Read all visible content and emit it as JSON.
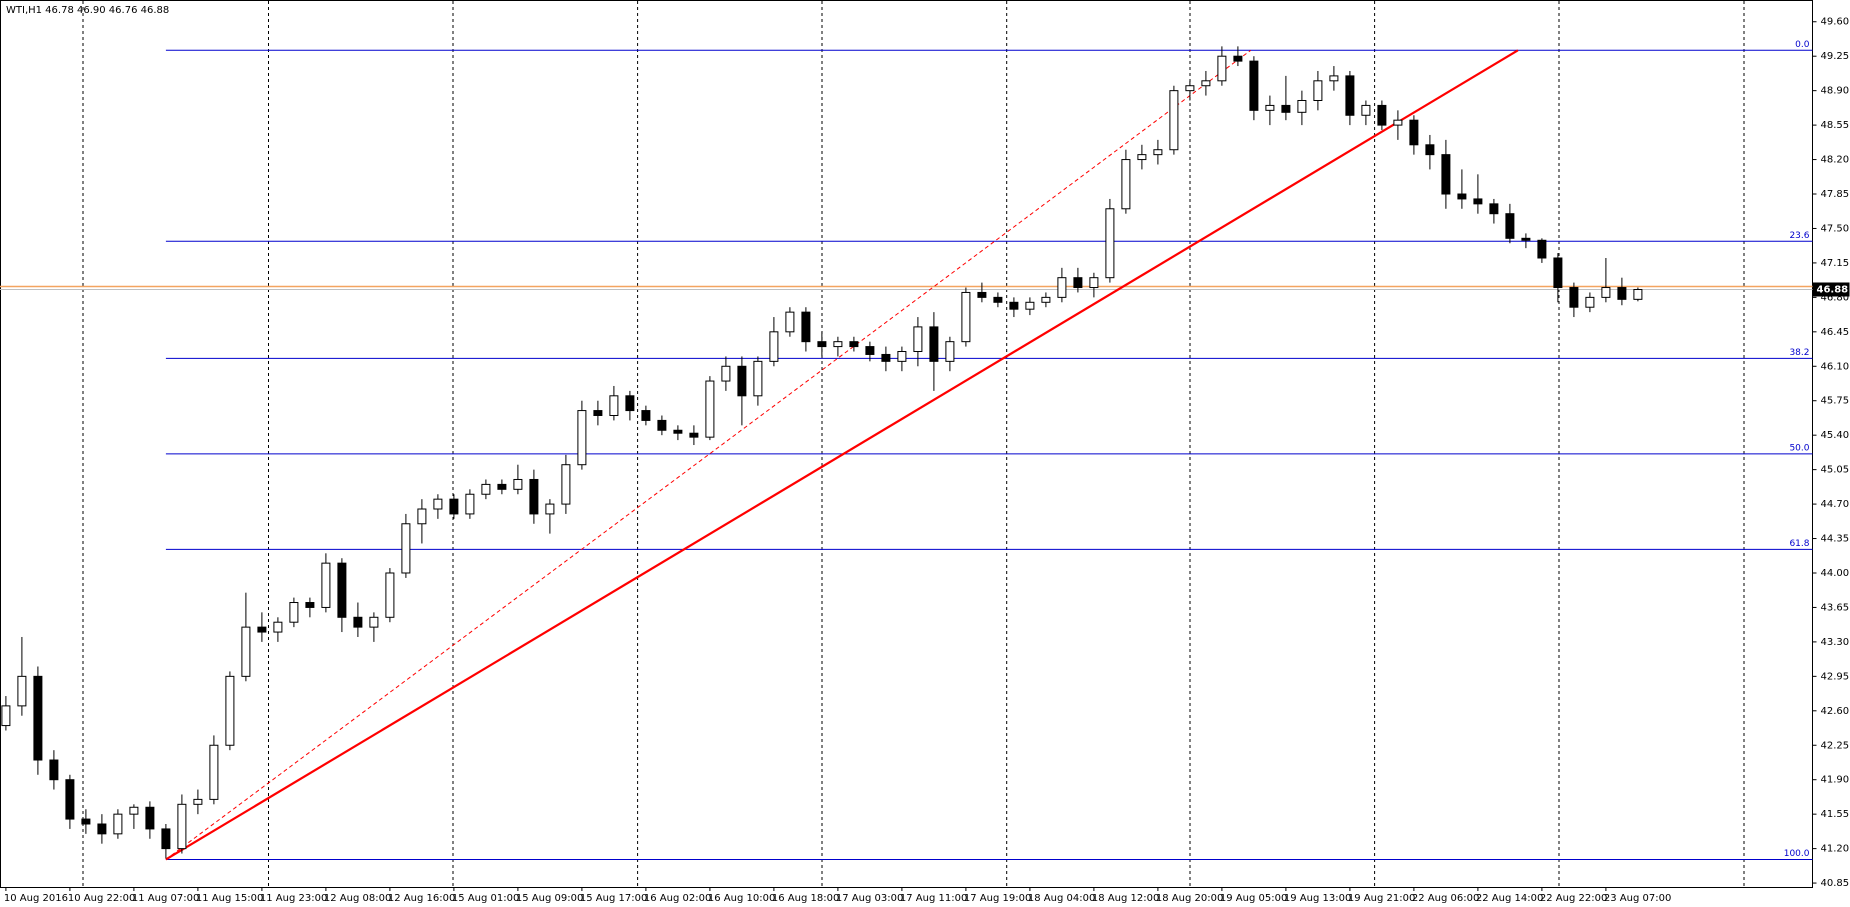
{
  "chart_data": {
    "type": "candlestick",
    "title": "WTI,H1  46.78 46.90 46.76 46.88",
    "ylim": [
      40.81,
      49.76
    ],
    "yticks": [
      40.85,
      {
        "value": 41.2,
        "label": "41.20"
      },
      41.55,
      {
        "value": 41.9,
        "label": "41.90"
      },
      42.25,
      {
        "value": 42.6,
        "label": "42.60"
      },
      42.95,
      {
        "value": 43.3,
        "label": "43.30"
      },
      43.65,
      {
        "value": 44,
        "label": "44.00"
      },
      44.35,
      {
        "value": 44.7,
        "label": "44.70"
      },
      45.05,
      {
        "value": 45.4,
        "label": "45.40"
      },
      45.75,
      {
        "value": 46.1,
        "label": "46.10"
      },
      46.45,
      {
        "value": 46.8,
        "label": "46.80"
      },
      47.15,
      {
        "value": 47.5,
        "label": "47.50"
      },
      47.85,
      {
        "value": 48.2,
        "label": "48.20"
      },
      48.55,
      {
        "value": 48.9,
        "label": "48.90"
      },
      49.25,
      {
        "value": 49.6,
        "label": "49.60"
      }
    ],
    "categories": [
      "10 Aug 2016",
      null,
      null,
      null,
      "10 Aug 22:00",
      null,
      null,
      null,
      "11 Aug 07:00",
      null,
      null,
      null,
      "11 Aug 15:00",
      null,
      null,
      null,
      "11 Aug 23:00",
      null,
      null,
      null,
      "12 Aug 08:00",
      null,
      null,
      null,
      "12 Aug 16:00",
      null,
      null,
      null,
      "15 Aug 01:00",
      null,
      null,
      null,
      "15 Aug 09:00",
      null,
      null,
      null,
      "15 Aug 17:00",
      null,
      null,
      null,
      "16 Aug 02:00",
      null,
      null,
      null,
      "16 Aug 10:00",
      null,
      null,
      null,
      "16 Aug 18:00",
      null,
      null,
      null,
      "17 Aug 03:00",
      null,
      null,
      null,
      "17 Aug 11:00",
      null,
      null,
      null,
      "17 Aug 19:00",
      null,
      null,
      null,
      "18 Aug 04:00",
      null,
      null,
      null,
      "18 Aug 12:00",
      null,
      null,
      null,
      "18 Aug 20:00",
      null,
      null,
      null,
      "19 Aug 05:00",
      null,
      null,
      null,
      "19 Aug 13:00",
      null,
      null,
      null,
      "19 Aug 21:00",
      null,
      null,
      null,
      "22 Aug 06:00",
      null,
      null,
      null,
      "22 Aug 14:00",
      null,
      null,
      null,
      "22 Aug 22:00",
      null,
      null,
      null,
      "23 Aug 07:00",
      null,
      null
    ],
    "ohlc": [
      [
        42.45,
        42.75,
        42.4,
        42.65
      ],
      [
        42.65,
        43.35,
        42.55,
        42.95
      ],
      [
        42.95,
        43.05,
        41.95,
        42.1
      ],
      [
        42.1,
        42.2,
        41.8,
        41.9
      ],
      [
        41.9,
        41.95,
        41.4,
        41.5
      ],
      [
        41.5,
        41.6,
        41.35,
        41.45
      ],
      [
        41.45,
        41.55,
        41.25,
        41.35
      ],
      [
        41.35,
        41.6,
        41.3,
        41.55
      ],
      [
        41.55,
        41.65,
        41.4,
        41.62
      ],
      [
        41.62,
        41.68,
        41.3,
        41.4
      ],
      [
        41.4,
        41.45,
        41.1,
        41.2
      ],
      [
        41.2,
        41.75,
        41.15,
        41.65
      ],
      [
        41.65,
        41.8,
        41.55,
        41.7
      ],
      [
        41.7,
        42.35,
        41.65,
        42.25
      ],
      [
        42.25,
        43,
        42.2,
        42.95
      ],
      [
        42.95,
        43.8,
        42.9,
        43.45
      ],
      [
        43.45,
        43.6,
        43.3,
        43.4
      ],
      [
        43.4,
        43.55,
        43.3,
        43.5
      ],
      [
        43.5,
        43.75,
        43.45,
        43.7
      ],
      [
        43.7,
        43.75,
        43.55,
        43.65
      ],
      [
        43.65,
        44.2,
        43.6,
        44.1
      ],
      [
        44.1,
        44.15,
        43.4,
        43.55
      ],
      [
        43.55,
        43.7,
        43.35,
        43.45
      ],
      [
        43.45,
        43.6,
        43.3,
        43.55
      ],
      [
        43.55,
        44.05,
        43.5,
        44
      ],
      [
        44,
        44.6,
        43.95,
        44.5
      ],
      [
        44.5,
        44.75,
        44.3,
        44.65
      ],
      [
        44.65,
        44.8,
        44.55,
        44.75
      ],
      [
        44.75,
        44.8,
        44.55,
        44.6
      ],
      [
        44.6,
        44.85,
        44.55,
        44.8
      ],
      [
        44.8,
        44.95,
        44.75,
        44.9
      ],
      [
        44.9,
        44.95,
        44.8,
        44.85
      ],
      [
        44.85,
        45.1,
        44.8,
        44.95
      ],
      [
        44.95,
        45.05,
        44.5,
        44.6
      ],
      [
        44.6,
        44.75,
        44.4,
        44.7
      ],
      [
        44.7,
        45.2,
        44.6,
        45.1
      ],
      [
        45.1,
        45.75,
        45.05,
        45.65
      ],
      [
        45.65,
        45.75,
        45.5,
        45.6
      ],
      [
        45.6,
        45.9,
        45.55,
        45.8
      ],
      [
        45.8,
        45.85,
        45.55,
        45.65
      ],
      [
        45.65,
        45.7,
        45.5,
        45.55
      ],
      [
        45.55,
        45.6,
        45.4,
        45.45
      ],
      [
        45.45,
        45.5,
        45.35,
        45.42
      ],
      [
        45.42,
        45.5,
        45.3,
        45.38
      ],
      [
        45.38,
        46,
        45.35,
        45.95
      ],
      [
        45.95,
        46.2,
        45.85,
        46.1
      ],
      [
        46.1,
        46.2,
        45.5,
        45.8
      ],
      [
        45.8,
        46.2,
        45.7,
        46.15
      ],
      [
        46.15,
        46.6,
        46.1,
        46.45
      ],
      [
        46.45,
        46.7,
        46.4,
        46.65
      ],
      [
        46.65,
        46.7,
        46.25,
        46.35
      ],
      [
        46.35,
        46.45,
        46.2,
        46.3
      ],
      [
        46.3,
        46.4,
        46.2,
        46.35
      ],
      [
        46.35,
        46.4,
        46.25,
        46.3
      ],
      [
        46.3,
        46.35,
        46.15,
        46.22
      ],
      [
        46.22,
        46.3,
        46.05,
        46.15
      ],
      [
        46.15,
        46.3,
        46.05,
        46.25
      ],
      [
        46.25,
        46.6,
        46.1,
        46.5
      ],
      [
        46.5,
        46.65,
        45.85,
        46.15
      ],
      [
        46.15,
        46.4,
        46.05,
        46.35
      ],
      [
        46.35,
        46.9,
        46.3,
        46.85
      ],
      [
        46.85,
        46.95,
        46.75,
        46.8
      ],
      [
        46.8,
        46.85,
        46.7,
        46.75
      ],
      [
        46.75,
        46.8,
        46.6,
        46.68
      ],
      [
        46.68,
        46.8,
        46.62,
        46.75
      ],
      [
        46.75,
        46.85,
        46.7,
        46.8
      ],
      [
        46.8,
        47.1,
        46.75,
        47
      ],
      [
        47,
        47.1,
        46.85,
        46.9
      ],
      [
        46.9,
        47.05,
        46.8,
        47
      ],
      [
        47,
        47.8,
        46.95,
        47.7
      ],
      [
        47.7,
        48.3,
        47.65,
        48.2
      ],
      [
        48.2,
        48.35,
        48.1,
        48.25
      ],
      [
        48.25,
        48.4,
        48.15,
        48.3
      ],
      [
        48.3,
        48.95,
        48.25,
        48.9
      ],
      [
        48.9,
        49,
        48.8,
        48.95
      ],
      [
        48.95,
        49.1,
        48.85,
        49
      ],
      [
        49,
        49.35,
        48.95,
        49.25
      ],
      [
        49.25,
        49.35,
        49.15,
        49.2
      ],
      [
        49.2,
        49.25,
        48.6,
        48.7
      ],
      [
        48.7,
        48.85,
        48.55,
        48.75
      ],
      [
        48.75,
        49.05,
        48.6,
        48.68
      ],
      [
        48.68,
        48.9,
        48.55,
        48.8
      ],
      [
        48.8,
        49.1,
        48.7,
        49
      ],
      [
        49,
        49.15,
        48.9,
        49.05
      ],
      [
        49.05,
        49.1,
        48.55,
        48.65
      ],
      [
        48.65,
        48.8,
        48.55,
        48.75
      ],
      [
        48.75,
        48.8,
        48.5,
        48.55
      ],
      [
        48.55,
        48.7,
        48.4,
        48.6
      ],
      [
        48.6,
        48.65,
        48.25,
        48.35
      ],
      [
        48.35,
        48.45,
        48.1,
        48.25
      ],
      [
        48.25,
        48.4,
        47.7,
        47.85
      ],
      [
        47.85,
        48.1,
        47.7,
        47.8
      ],
      [
        47.8,
        48.05,
        47.65,
        47.75
      ],
      [
        47.75,
        47.8,
        47.55,
        47.65
      ],
      [
        47.65,
        47.75,
        47.35,
        47.4
      ],
      [
        47.4,
        47.45,
        47.3,
        47.38
      ],
      [
        47.38,
        47.4,
        47.15,
        47.2
      ],
      [
        47.2,
        47.25,
        46.75,
        46.9
      ],
      [
        46.9,
        46.95,
        46.6,
        46.7
      ],
      [
        46.7,
        46.85,
        46.65,
        46.8
      ],
      [
        46.8,
        47.2,
        46.75,
        46.9
      ],
      [
        46.9,
        47,
        46.72,
        46.78
      ],
      [
        46.78,
        46.9,
        46.76,
        46.88
      ]
    ],
    "fibo": {
      "color": "#0000cd",
      "from": 10,
      "levels": [
        {
          "label": "0.0",
          "price": 49.31
        },
        {
          "label": "23.6",
          "price": 47.37
        },
        {
          "label": "38.2",
          "price": 46.18
        },
        {
          "label": "50.0",
          "price": 45.21
        },
        {
          "label": "61.8",
          "price": 44.24
        },
        {
          "label": "100.0",
          "price": 41.09
        }
      ]
    },
    "trendlines": [
      {
        "color": "#ff0000",
        "dashed": false,
        "x": [
          10,
          94.5
        ],
        "y": [
          41.09,
          49.31
        ]
      },
      {
        "color": "#ff0000",
        "dashed": true,
        "x": [
          10,
          77.8
        ],
        "y": [
          41.09,
          49.31
        ]
      }
    ],
    "hline": {
      "value": 46.91,
      "color": "#f4a460"
    },
    "bid": 46.88,
    "grid": true
  }
}
